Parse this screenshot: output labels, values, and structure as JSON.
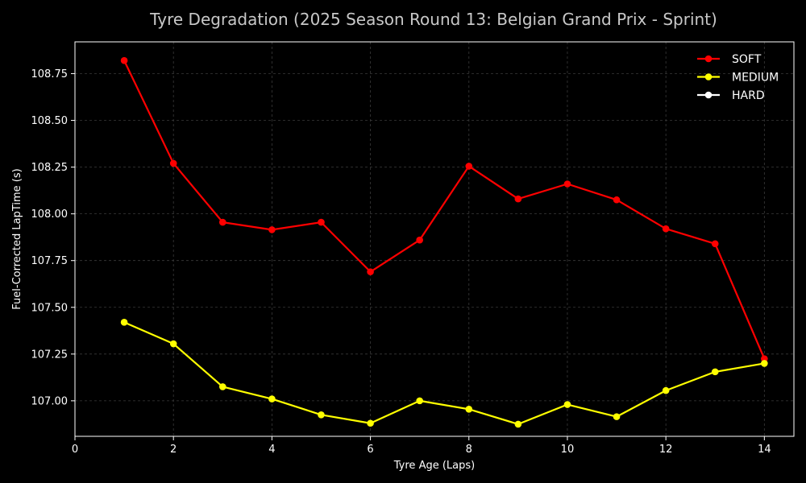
{
  "chart_data": {
    "type": "line",
    "title": "Tyre Degradation (2025 Season Round 13: Belgian Grand Prix - Sprint)",
    "xlabel": "Tyre Age (Laps)",
    "ylabel": "Fuel-Corrected LapTime (s)",
    "xlim": [
      0,
      14.6
    ],
    "ylim": [
      106.81,
      108.92
    ],
    "x_ticks": [
      0,
      2,
      4,
      6,
      8,
      10,
      12,
      14
    ],
    "y_ticks": [
      107.0,
      107.25,
      107.5,
      107.75,
      108.0,
      108.25,
      108.5,
      108.75
    ],
    "x_tick_labels": [
      "0",
      "2",
      "4",
      "6",
      "8",
      "10",
      "12",
      "14"
    ],
    "y_tick_labels": [
      "107.00",
      "107.25",
      "107.50",
      "107.75",
      "108.00",
      "108.25",
      "108.50",
      "108.75"
    ],
    "grid": true,
    "legend_position": "top-right",
    "background": "#000000",
    "series": [
      {
        "name": "SOFT",
        "color": "#ff0000",
        "x": [
          1,
          2,
          3,
          4,
          5,
          6,
          7,
          8,
          9,
          10,
          11,
          12,
          13,
          14
        ],
        "values": [
          108.82,
          108.27,
          107.955,
          107.915,
          107.955,
          107.69,
          107.86,
          108.255,
          108.08,
          108.16,
          108.075,
          107.92,
          107.84,
          107.225
        ]
      },
      {
        "name": "MEDIUM",
        "color": "#ffff00",
        "x": [
          1,
          2,
          3,
          4,
          5,
          6,
          7,
          8,
          9,
          10,
          11,
          12,
          13,
          14
        ],
        "values": [
          107.42,
          107.305,
          107.075,
          107.01,
          106.925,
          106.88,
          107.0,
          106.955,
          106.875,
          106.98,
          106.915,
          107.055,
          107.155,
          107.2
        ]
      },
      {
        "name": "HARD",
        "color": "#ffffff",
        "x": [],
        "values": []
      }
    ]
  }
}
